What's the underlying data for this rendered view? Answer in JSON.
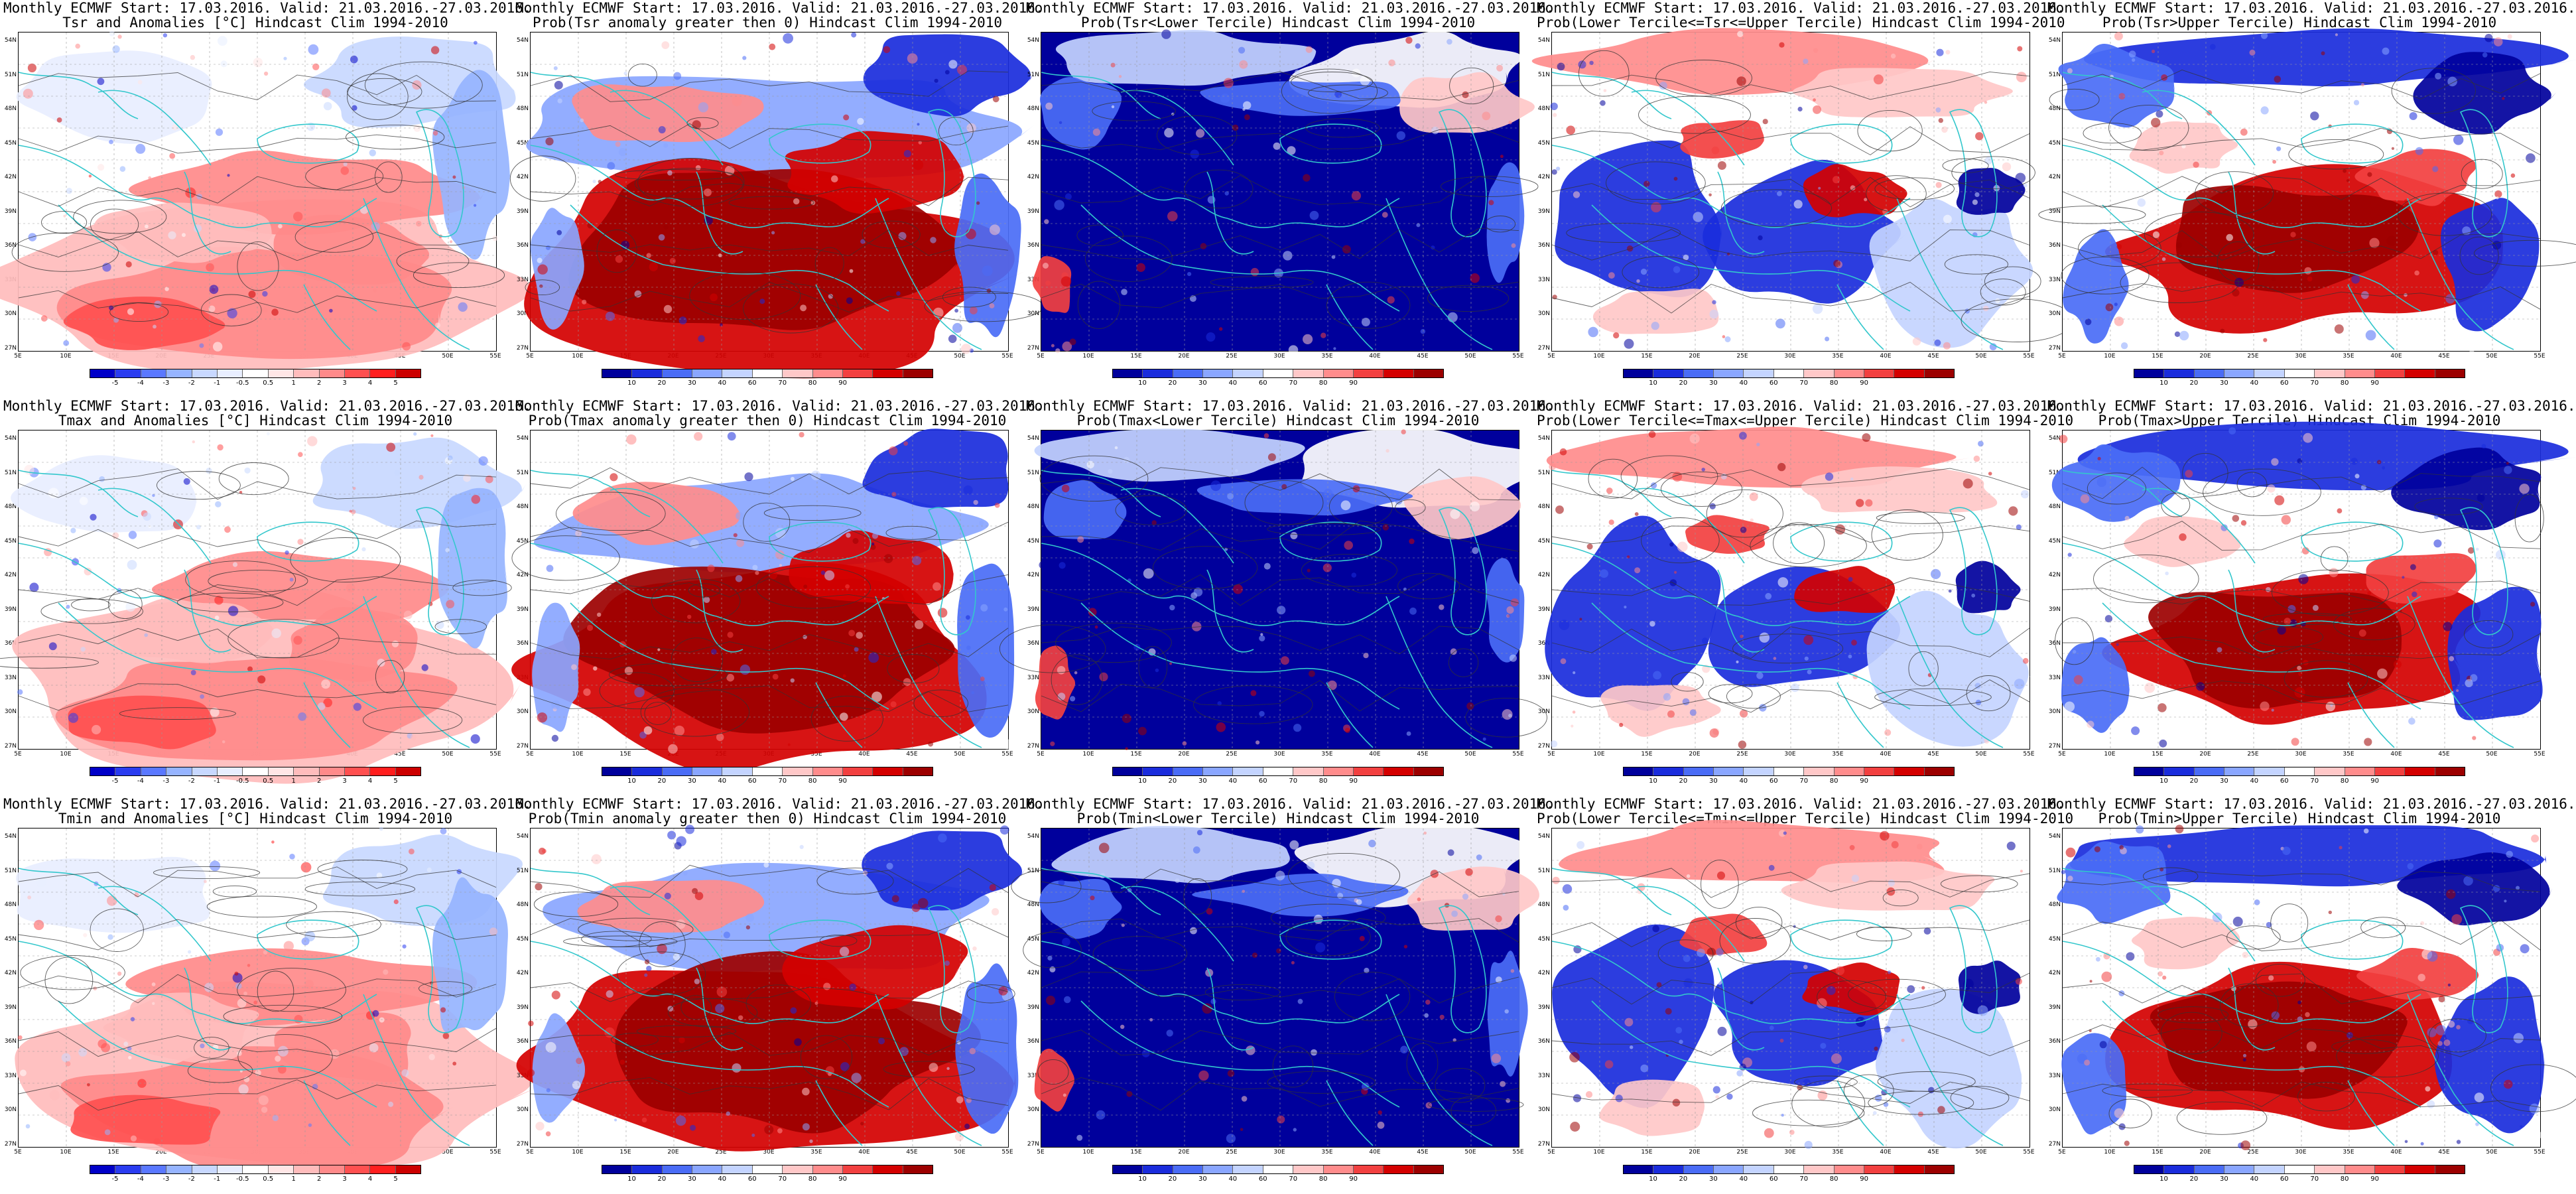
{
  "meta_colors": {
    "coast": "#33c7cc",
    "land_contour": "#333333"
  },
  "lat_labels": [
    "54N",
    "51N",
    "48N",
    "45N",
    "42N",
    "39N",
    "36N",
    "33N",
    "30N",
    "27N"
  ],
  "lon_labels": [
    "5E",
    "10E",
    "15E",
    "20E",
    "25E",
    "30E",
    "35E",
    "40E",
    "45E",
    "50E",
    "55E"
  ],
  "anom_ticks": [
    "-5",
    "-4",
    "-3",
    "-2",
    "-1",
    "-0.5",
    "0.5",
    "1",
    "2",
    "3",
    "4",
    "5"
  ],
  "prob_ticks": [
    "10",
    "20",
    "30",
    "40",
    "60",
    "70",
    "80",
    "90"
  ],
  "anom_colors": [
    "#0000c8",
    "#2a3cf0",
    "#5a78ff",
    "#96b4ff",
    "#c8d8ff",
    "#e8eeff",
    "#ffffff",
    "#ffe6e6",
    "#ffbcbc",
    "#ff8a8a",
    "#ff5050",
    "#ff1e1e",
    "#cc0000"
  ],
  "prob_colors": [
    "#00009c",
    "#1a2cdc",
    "#4a6cf6",
    "#8aa6ff",
    "#c4d4ff",
    "#ffffff",
    "#ffc8c8",
    "#ff8c8c",
    "#f24040",
    "#d40000",
    "#9c0000"
  ],
  "panels": [
    {
      "title1": "Monthly ECMWF Start: 17.03.2016. Valid: 21.03.2016.-27.03.2016.",
      "title2": "Tsr and Anomalies [°C] Hindcast Clim 1994-2010",
      "scale": "anom",
      "theme": "anom-warm"
    },
    {
      "title1": "Monthly ECMWF Start: 17.03.2016. Valid: 21.03.2016.-27.03.2016.",
      "title2": "Prob(Tsr anomaly greater then 0) Hindcast Clim 1994-2010",
      "scale": "prob",
      "theme": "prob-red"
    },
    {
      "title1": "Monthly ECMWF Start: 17.03.2016. Valid: 21.03.2016.-27.03.2016.",
      "title2": "Prob(Tsr<Lower Tercile) Hindcast Clim 1994-2010",
      "scale": "prob",
      "theme": "prob-blue"
    },
    {
      "title1": "Monthly ECMWF Start: 17.03.2016. Valid: 21.03.2016.-27.03.2016.",
      "title2": "Prob(Lower Tercile<=Tsr<=Upper Tercile) Hindcast Clim 1994-2010",
      "scale": "prob",
      "theme": "prob-mixed"
    },
    {
      "title1": "Monthly ECMWF Start: 17.03.2016. Valid: 21.03.2016.-27.03.2016.",
      "title2": "Prob(Tsr>Upper Tercile) Hindcast Clim 1994-2010",
      "scale": "prob",
      "theme": "prob-upper"
    },
    {
      "title1": "Monthly ECMWF Start: 17.03.2016. Valid: 21.03.2016.-27.03.2016.",
      "title2": "Tmax and Anomalies [°C] Hindcast Clim 1994-2010",
      "scale": "anom",
      "theme": "anom-warm"
    },
    {
      "title1": "Monthly ECMWF Start: 17.03.2016. Valid: 21.03.2016.-27.03.2016.",
      "title2": "Prob(Tmax anomaly greater then 0) Hindcast Clim 1994-2010",
      "scale": "prob",
      "theme": "prob-red"
    },
    {
      "title1": "Monthly ECMWF Start: 17.03.2016. Valid: 21.03.2016.-27.03.2016.",
      "title2": "Prob(Tmax<Lower Tercile) Hindcast Clim 1994-2010",
      "scale": "prob",
      "theme": "prob-blue"
    },
    {
      "title1": "Monthly ECMWF Start: 17.03.2016. Valid: 21.03.2016.-27.03.2016.",
      "title2": "Prob(Lower Tercile<=Tmax<=Upper Tercile) Hindcast Clim 1994-2010",
      "scale": "prob",
      "theme": "prob-mixed"
    },
    {
      "title1": "Monthly ECMWF Start: 17.03.2016. Valid: 21.03.2016.-27.03.2016.",
      "title2": "Prob(Tmax>Upper Tercile) Hindcast Clim 1994-2010",
      "scale": "prob",
      "theme": "prob-upper"
    },
    {
      "title1": "Monthly ECMWF Start: 17.03.2016. Valid: 21.03.2016.-27.03.2016.",
      "title2": "Tmin and Anomalies [°C] Hindcast Clim 1994-2010",
      "scale": "anom",
      "theme": "anom-warm"
    },
    {
      "title1": "Monthly ECMWF Start: 17.03.2016. Valid: 21.03.2016.-27.03.2016.",
      "title2": "Prob(Tmin anomaly greater then 0) Hindcast Clim 1994-2010",
      "scale": "prob",
      "theme": "prob-red"
    },
    {
      "title1": "Monthly ECMWF Start: 17.03.2016. Valid: 21.03.2016.-27.03.2016.",
      "title2": "Prob(Tmin<Lower Tercile) Hindcast Clim 1994-2010",
      "scale": "prob",
      "theme": "prob-blue"
    },
    {
      "title1": "Monthly ECMWF Start: 17.03.2016. Valid: 21.03.2016.-27.03.2016.",
      "title2": "Prob(Lower Tercile<=Tmin<=Upper Tercile) Hindcast Clim 1994-2010",
      "scale": "prob",
      "theme": "prob-mixed"
    },
    {
      "title1": "Monthly ECMWF Start: 17.03.2016. Valid: 21.03.2016.-27.03.2016.",
      "title2": "Prob(Tmin>Upper Tercile) Hindcast Clim 1994-2010",
      "scale": "prob",
      "theme": "prob-upper"
    }
  ]
}
